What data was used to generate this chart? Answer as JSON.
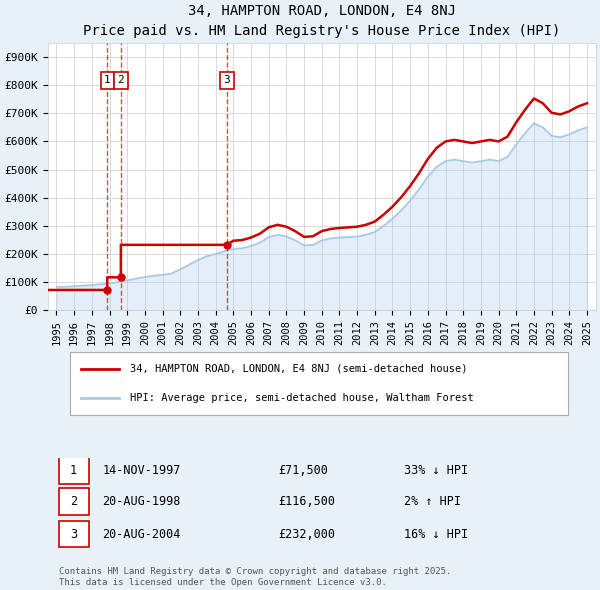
{
  "title": "34, HAMPTON ROAD, LONDON, E4 8NJ",
  "subtitle": "Price paid vs. HM Land Registry's House Price Index (HPI)",
  "legend_property": "34, HAMPTON ROAD, LONDON, E4 8NJ (semi-detached house)",
  "legend_hpi": "HPI: Average price, semi-detached house, Waltham Forest",
  "footnote": "Contains HM Land Registry data © Crown copyright and database right 2025.\nThis data is licensed under the Open Government Licence v3.0.",
  "transactions": [
    {
      "id": 1,
      "date": "14-NOV-1997",
      "price": 71500,
      "hpi_rel": "33% ↓ HPI",
      "x": 1997.87
    },
    {
      "id": 2,
      "date": "20-AUG-1998",
      "price": 116500,
      "hpi_rel": "2% ↑ HPI",
      "x": 1998.64
    },
    {
      "id": 3,
      "date": "20-AUG-2004",
      "price": 232000,
      "hpi_rel": "16% ↓ HPI",
      "x": 2004.64
    }
  ],
  "hpi_line_color": "#a8c8e8",
  "price_line_color": "#cc0000",
  "vline_color": "#cc0000",
  "dot_color": "#cc0000",
  "background_color": "#e8f0f8",
  "plot_bg_color": "#ffffff",
  "ylim": [
    0,
    950000
  ],
  "xlim_start": 1994.5,
  "xlim_end": 2025.5,
  "yticks": [
    0,
    100000,
    200000,
    300000,
    400000,
    500000,
    600000,
    700000,
    800000,
    900000
  ],
  "ytick_labels": [
    "£0",
    "£100K",
    "£200K",
    "£300K",
    "£400K",
    "£500K",
    "£600K",
    "£700K",
    "£800K",
    "£900K"
  ],
  "xticks": [
    1995,
    1996,
    1997,
    1998,
    1999,
    2000,
    2001,
    2002,
    2003,
    2004,
    2005,
    2006,
    2007,
    2008,
    2009,
    2010,
    2011,
    2012,
    2013,
    2014,
    2015,
    2016,
    2017,
    2018,
    2019,
    2020,
    2021,
    2022,
    2023,
    2024,
    2025
  ]
}
